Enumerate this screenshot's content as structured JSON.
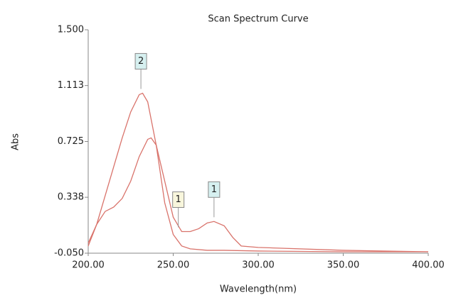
{
  "chart_data": {
    "type": "line",
    "title": "Scan Spectrum Curve",
    "x_label": "Wavelength(nm)",
    "y_label": "Abs",
    "xlim": [
      200,
      400
    ],
    "xticks": [
      {
        "value": 200,
        "label": "200.00"
      },
      {
        "value": 250,
        "label": "250.00"
      },
      {
        "value": 300,
        "label": "300.00"
      },
      {
        "value": 350,
        "label": "350.00"
      },
      {
        "value": 400,
        "label": "400.00"
      }
    ],
    "ylim": [
      -0.05,
      1.5
    ],
    "yticks": [
      {
        "value": -0.05,
        "label": "-0.050"
      },
      {
        "value": 0.338,
        "label": "0.338"
      },
      {
        "value": 0.725,
        "label": "0.725"
      },
      {
        "value": 1.113,
        "label": "1.113"
      },
      {
        "value": 1.5,
        "label": "1.500"
      }
    ],
    "series": [
      {
        "color": "#d9736b",
        "x": [
          200,
          205,
          210,
          215,
          220,
          225,
          230,
          232,
          235,
          240,
          245,
          250,
          255,
          260,
          270,
          280,
          300,
          350,
          400
        ],
        "values": [
          0.02,
          0.15,
          0.35,
          0.55,
          0.75,
          0.93,
          1.05,
          1.06,
          1.0,
          0.7,
          0.3,
          0.08,
          0.0,
          -0.02,
          -0.03,
          -0.03,
          -0.035,
          -0.04,
          -0.04
        ]
      },
      {
        "color": "#d9736b",
        "x": [
          200,
          205,
          210,
          215,
          220,
          225,
          230,
          235,
          237,
          240,
          245,
          250,
          255,
          260,
          265,
          270,
          274,
          280,
          285,
          290,
          300,
          350,
          400
        ],
        "values": [
          0.0,
          0.15,
          0.24,
          0.27,
          0.33,
          0.45,
          0.62,
          0.74,
          0.75,
          0.7,
          0.45,
          0.2,
          0.1,
          0.1,
          0.12,
          0.16,
          0.17,
          0.14,
          0.06,
          0.0,
          -0.01,
          -0.03,
          -0.04
        ]
      }
    ],
    "annotations": [
      {
        "text": "2",
        "x": 231,
        "y": 1.06,
        "color": "#d6f0f0"
      },
      {
        "text": "1",
        "x": 274,
        "y": 0.17,
        "color": "#d6f0f0"
      },
      {
        "text": "1",
        "x": 253,
        "y": 0.1,
        "color": "#f8f6dc"
      }
    ]
  }
}
